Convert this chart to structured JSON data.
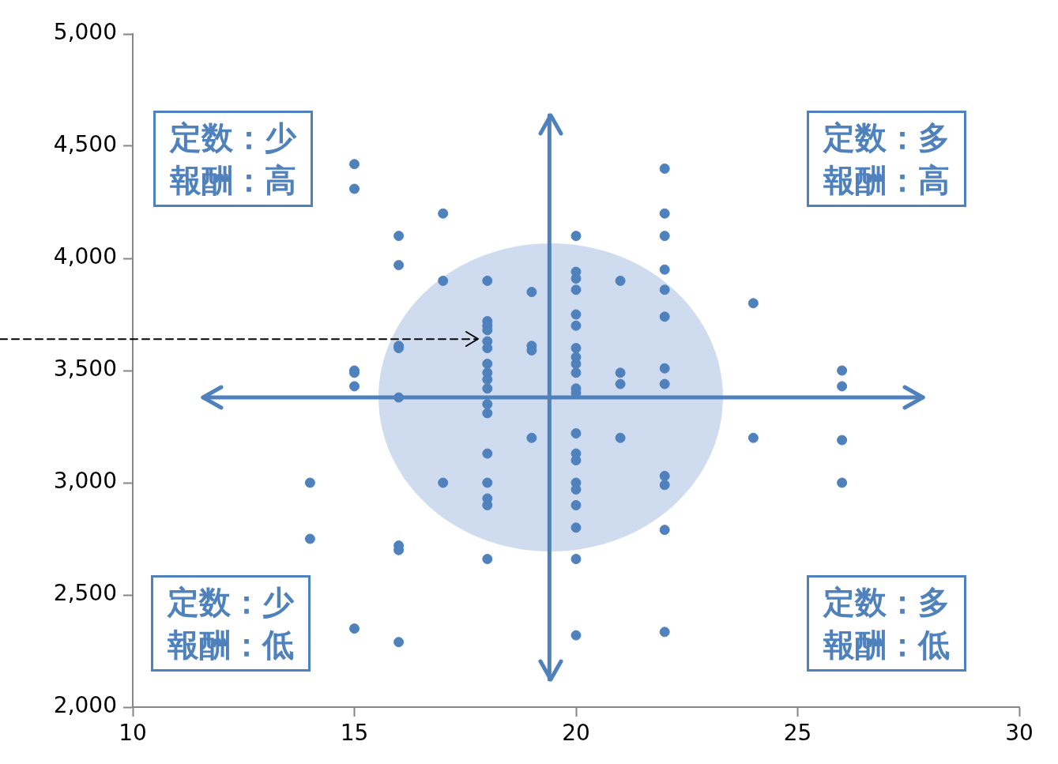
{
  "chart_data": {
    "type": "scatter",
    "marker": "circle",
    "grid": false,
    "legend": false,
    "annotations": [
      "定数：少",
      "報酬：高",
      "定数：多",
      "報酬：高",
      "定数：少",
      "報酬：低",
      "定数：多",
      "報酬：低"
    ],
    "ref_lines": [
      {
        "axis": "y",
        "value": 3380,
        "color": "#4f81bd",
        "line_style": "solid"
      },
      {
        "axis": "x",
        "value": 19.4,
        "color": "#4f81bd",
        "line_style": "solid"
      },
      {
        "axis": "y",
        "value": 3640,
        "color": "#000000",
        "line_style": "dashed"
      }
    ],
    "xlim": [
      10,
      30
    ],
    "xticks": [
      10,
      15,
      20,
      25,
      30
    ],
    "ylim": [
      2000,
      5000
    ],
    "yticks": [
      {
        "value": 2000,
        "label": "2,000"
      },
      {
        "value": 2500,
        "label": "2,500"
      },
      {
        "value": 3000,
        "label": "3,000"
      },
      {
        "value": 3500,
        "label": "3,500"
      },
      {
        "value": 4000,
        "label": "4,000"
      },
      {
        "value": 4500,
        "label": "4,500"
      },
      {
        "value": 5000,
        "label": "5,000"
      }
    ],
    "series": [
      {
        "color": "#4f81bd",
        "x": [
          14,
          14,
          15,
          15,
          15,
          15,
          15,
          15,
          16,
          16,
          16,
          16,
          16,
          16,
          16,
          16,
          17,
          17,
          17,
          18,
          18,
          18,
          18,
          18,
          18,
          18,
          18,
          18,
          18,
          18,
          18,
          18,
          18,
          18,
          18,
          18,
          19,
          19,
          19,
          19,
          20,
          20,
          20,
          20,
          20,
          20,
          20,
          20,
          20,
          20,
          20,
          20,
          20,
          20,
          20,
          20,
          20,
          20,
          20,
          20,
          20,
          21,
          21,
          21,
          21,
          22,
          22,
          22,
          22,
          22,
          22,
          22,
          22,
          22,
          22,
          22,
          22,
          24,
          24,
          26,
          26,
          26,
          26
        ],
        "values": [
          3000,
          2750,
          4420,
          4310,
          3500,
          3490,
          3430,
          2350,
          4100,
          3970,
          3610,
          3600,
          3380,
          2720,
          2700,
          2290,
          4200,
          3900,
          3000,
          3900,
          3720,
          3700,
          3680,
          3630,
          3600,
          3530,
          3490,
          3460,
          3420,
          3350,
          3310,
          3130,
          3000,
          2930,
          2900,
          2660,
          3850,
          3610,
          3590,
          3200,
          4100,
          3940,
          3910,
          3860,
          3750,
          3700,
          3600,
          3560,
          3530,
          3490,
          3420,
          3400,
          3220,
          3130,
          3100,
          3000,
          2970,
          2900,
          2800,
          2660,
          2320,
          3900,
          3490,
          3440,
          3200,
          4400,
          4200,
          4100,
          3950,
          3860,
          3740,
          3510,
          3440,
          3030,
          2990,
          2790,
          2335,
          3800,
          3200,
          3500,
          3430,
          3190,
          3000
        ]
      }
    ]
  }
}
